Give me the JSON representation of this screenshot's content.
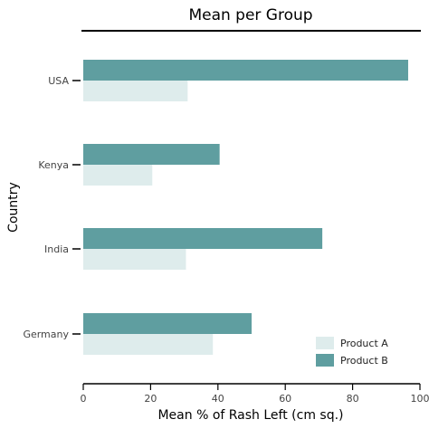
{
  "chart_data": {
    "type": "bar",
    "orientation": "horizontal",
    "title": "Mean per Group",
    "xlabel": "Mean % of Rash Left (cm sq.)",
    "ylabel": "Country",
    "categories": [
      "USA",
      "Kenya",
      "India",
      "Germany"
    ],
    "series": [
      {
        "name": "Product B",
        "color": "#5f9ea0",
        "values": [
          96.5,
          40.5,
          71.0,
          50.0
        ]
      },
      {
        "name": "Product A",
        "color": "#deecec",
        "values": [
          31.0,
          20.5,
          30.5,
          38.5
        ]
      }
    ],
    "xlim": [
      0,
      100
    ],
    "xticks": [
      0,
      20,
      40,
      60,
      80,
      100
    ],
    "xtick_labels": [
      "0",
      "20",
      "40",
      "60",
      "80",
      "100"
    ],
    "grid": false,
    "legend": {
      "placement": "bottom-right",
      "entries": [
        {
          "name": "Product A",
          "color": "#deecec"
        },
        {
          "name": "Product B",
          "color": "#5f9ea0"
        }
      ]
    }
  }
}
